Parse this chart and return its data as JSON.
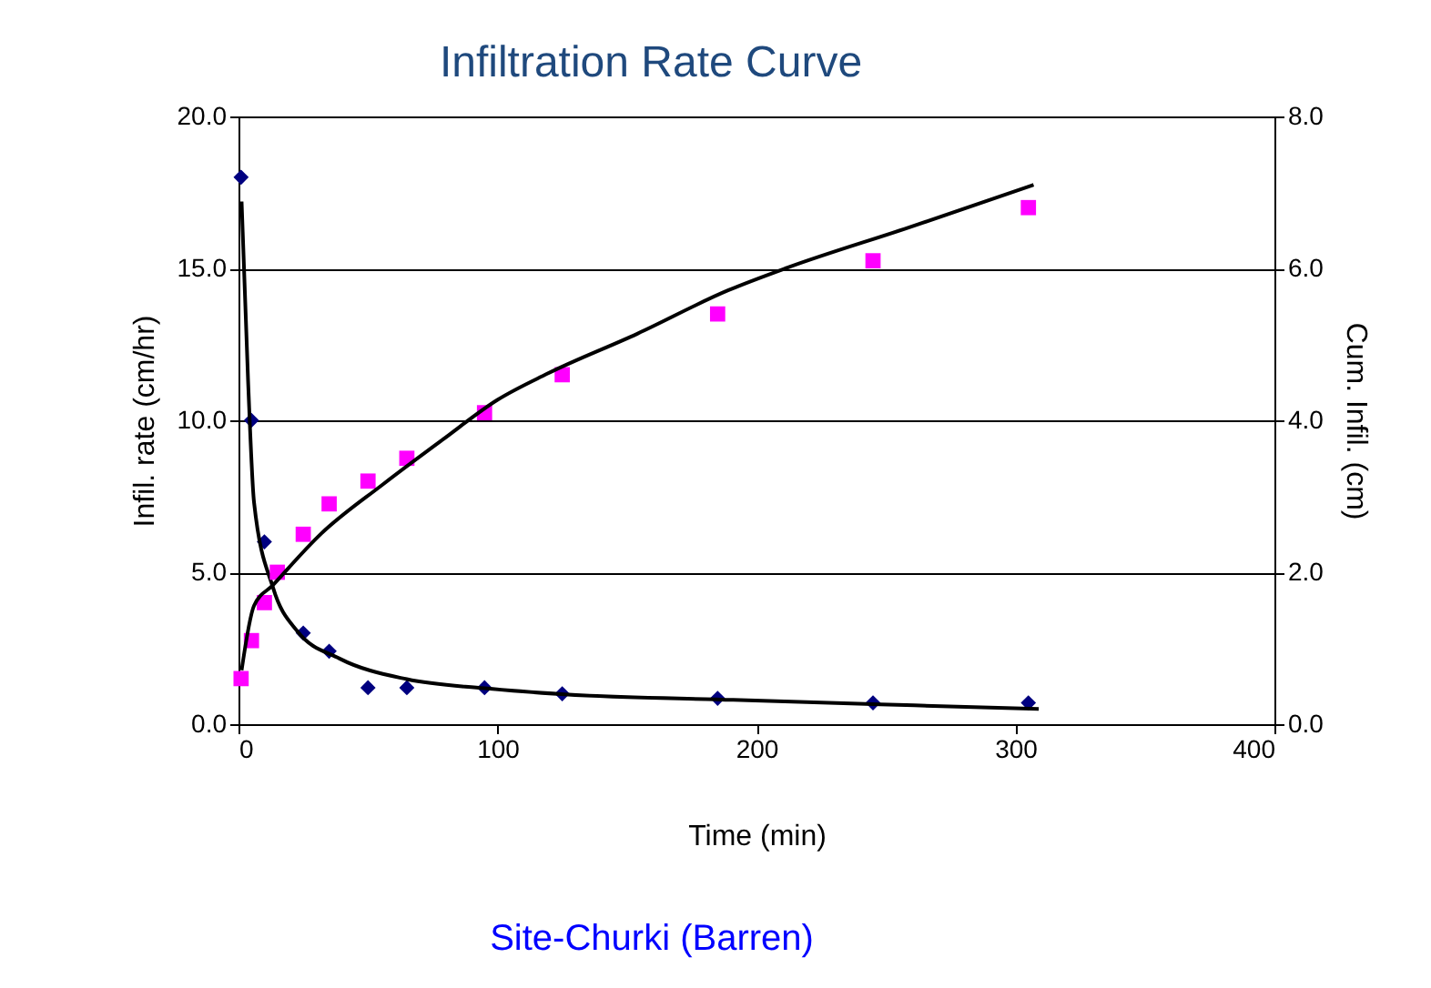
{
  "chart_data": {
    "type": "scatter",
    "title": "Infiltration Rate Curve",
    "xlabel": "Time (min)",
    "ylabel": "Infil. rate (cm/hr)",
    "y2label": "Cum. Infil. (cm)",
    "annotations": [
      "Site-Churki  (Barren)"
    ],
    "xlim": [
      0,
      400
    ],
    "xticks": [
      0,
      100,
      200,
      300,
      400
    ],
    "ylim": [
      0,
      20
    ],
    "yticks": [
      {
        "value": 0,
        "label": "0.0"
      },
      {
        "value": 5,
        "label": "5.0"
      },
      {
        "value": 10,
        "label": "10.0"
      },
      {
        "value": 15,
        "label": "15.0"
      },
      {
        "value": 20,
        "label": "20.0"
      }
    ],
    "y2lim": [
      0,
      8
    ],
    "y2ticks": [
      {
        "value": 0,
        "label": "0.0"
      },
      {
        "value": 2,
        "label": "2.0"
      },
      {
        "value": 4,
        "label": "4.0"
      },
      {
        "value": 6,
        "label": "6.0"
      },
      {
        "value": 8,
        "label": "8.0"
      }
    ],
    "grid": "y",
    "series": [
      {
        "marker": "diamond",
        "color": "#000080",
        "x": [
          1,
          5,
          10,
          25,
          35,
          50,
          65,
          95,
          125,
          185,
          245,
          305
        ],
        "values": [
          18.0,
          10.0,
          6.0,
          3.0,
          2.4,
          1.2,
          1.2,
          1.2,
          1.0,
          0.85,
          0.7,
          0.7
        ]
      },
      {
        "marker": "square",
        "color": "#ff00ff",
        "axis": "y2",
        "x": [
          1,
          5,
          10,
          15,
          25,
          35,
          50,
          65,
          95,
          125,
          185,
          245,
          305
        ],
        "values": [
          0.6,
          1.1,
          1.6,
          2.0,
          2.5,
          2.9,
          3.2,
          3.5,
          4.1,
          4.6,
          5.4,
          6.1,
          6.8
        ]
      },
      {
        "type": "line",
        "line_style": "solid",
        "color": "#000000",
        "x": [
          1.2,
          3.7,
          6,
          13.3,
          22.7,
          39,
          65,
          95,
          126,
          191,
          261,
          309
        ],
        "values": [
          17.2,
          11.3,
          7.3,
          4.5,
          3.06,
          2.16,
          1.48,
          1.18,
          0.98,
          0.8,
          0.62,
          0.5
        ]
      },
      {
        "type": "line",
        "line_style": "solid",
        "color": "#000000",
        "axis": "y2",
        "x": [
          1.2,
          6,
          13.3,
          32,
          55.5,
          79,
          100,
          119,
          154,
          189,
          212,
          259,
          307
        ],
        "values": [
          0.71,
          1.56,
          1.83,
          2.51,
          3.15,
          3.75,
          4.27,
          4.61,
          5.14,
          5.71,
          6.01,
          6.54,
          7.1
        ]
      }
    ]
  }
}
